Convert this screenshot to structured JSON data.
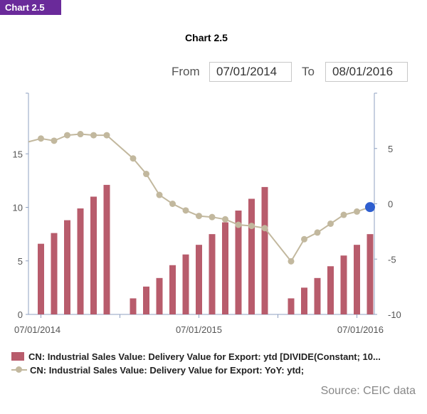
{
  "badge": "Chart 2.5",
  "header": {
    "title": "Chart 2.5"
  },
  "range": {
    "from_label": "From",
    "from_value": "07/01/2014",
    "to_label": "To",
    "to_value": "08/01/2016"
  },
  "source": "Source: CEIC data",
  "colors": {
    "bars": "#b85c6c",
    "line": "#c2b89e",
    "last_point": "#2f5fcf",
    "axis": "#8fa0c0",
    "tick_text": "#555555"
  },
  "chart_data": {
    "type": "bar",
    "title": "Chart 2.5",
    "x_tick_labels": [
      "07/01/2014",
      "07/01/2015",
      "07/01/2016"
    ],
    "y_left": {
      "ticks": [
        "0",
        "5",
        "10",
        "15"
      ],
      "ylim": [
        0,
        20
      ]
    },
    "y_right": {
      "ticks": [
        "-10",
        "-5",
        "0",
        "5"
      ],
      "ylim": [
        -10,
        10
      ]
    },
    "dates": [
      "2014-07",
      "2014-08",
      "2014-09",
      "2014-10",
      "2014-11",
      "2014-12",
      "2015-01",
      "2015-02",
      "2015-03",
      "2015-04",
      "2015-05",
      "2015-06",
      "2015-07",
      "2015-08",
      "2015-09",
      "2015-10",
      "2015-11",
      "2015-12",
      "2016-01",
      "2016-02",
      "2016-03",
      "2016-04",
      "2016-05",
      "2016-06",
      "2016-07",
      "2016-08"
    ],
    "series": [
      {
        "name": "CN: Industrial Sales Value: Delivery Value for Export: ytd [DIVIDE(Constant; 10...",
        "type": "bar",
        "axis": "left",
        "values": [
          6.6,
          7.6,
          8.8,
          9.9,
          11.0,
          12.1,
          null,
          1.5,
          2.6,
          3.4,
          4.6,
          5.6,
          6.5,
          7.5,
          8.6,
          9.7,
          10.8,
          11.9,
          null,
          1.5,
          2.5,
          3.4,
          4.5,
          5.5,
          6.5,
          7.5
        ]
      },
      {
        "name": "CN: Industrial Sales Value: Delivery Value for Export: YoY: ytd;",
        "type": "line",
        "axis": "right",
        "values": [
          5.9,
          5.7,
          6.2,
          6.3,
          6.2,
          6.2,
          null,
          4.1,
          2.7,
          0.8,
          0.0,
          -0.6,
          -1.1,
          -1.2,
          -1.4,
          -1.9,
          -2.0,
          -2.2,
          null,
          -5.2,
          -3.2,
          -2.6,
          -1.8,
          -1.0,
          -0.7,
          -0.3
        ]
      }
    ],
    "legend": "bottom-left",
    "grid": false
  }
}
